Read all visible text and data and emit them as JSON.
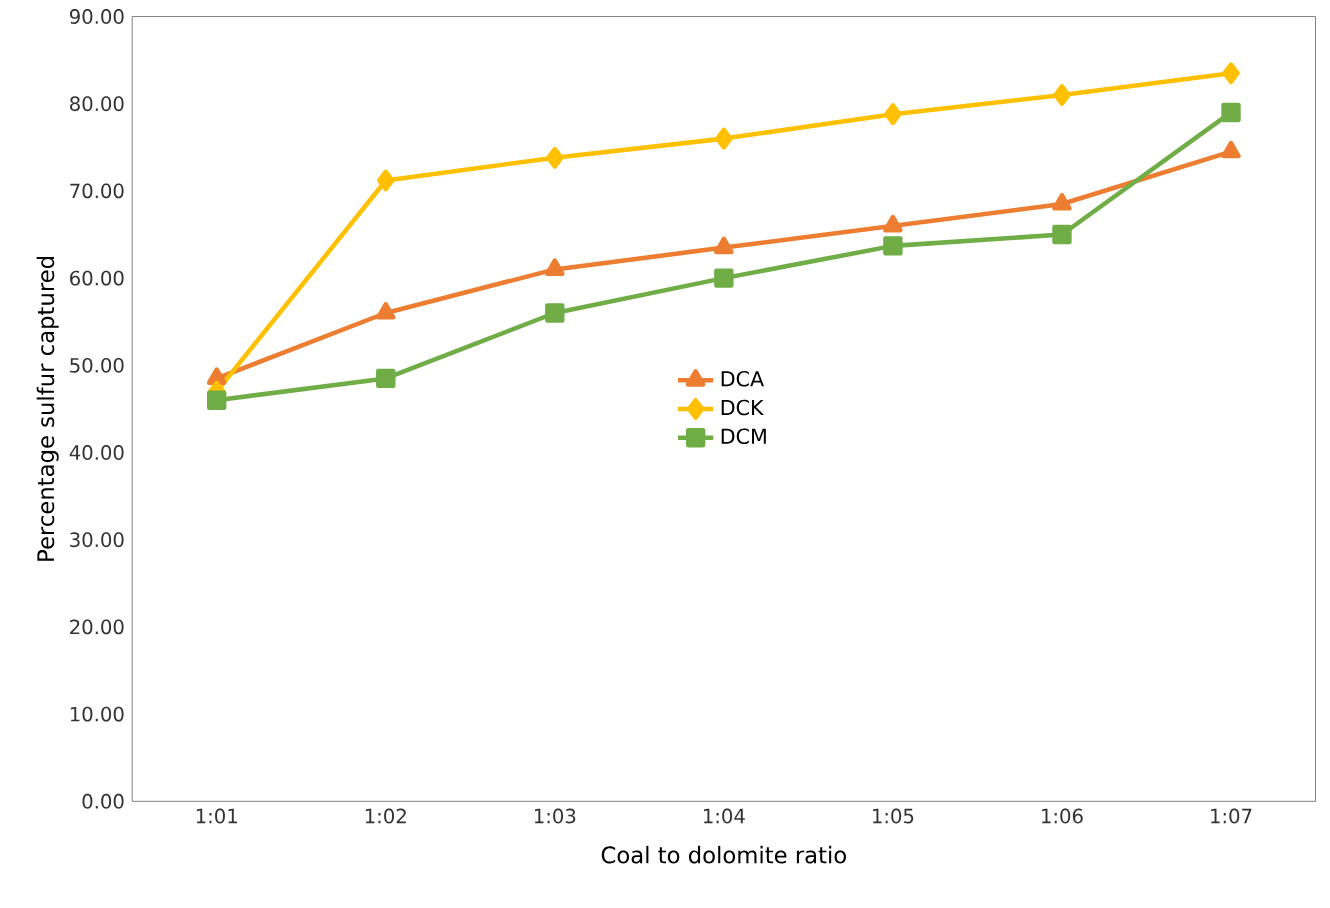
{
  "chart_data": {
    "type": "line",
    "xlabel": "Coal to dolomite ratio",
    "ylabel": "Percentage sulfur captured",
    "categories": [
      "1:01",
      "1:02",
      "1:03",
      "1:04",
      "1:05",
      "1:06",
      "1:07"
    ],
    "series": [
      {
        "name": "DCA",
        "color": "#ed7d31",
        "marker": "triangle",
        "values": [
          48.5,
          56,
          61,
          63.5,
          66,
          68.5,
          74.5
        ]
      },
      {
        "name": "DCK",
        "color": "#ffc000",
        "marker": "diamond",
        "values": [
          47,
          71.2,
          73.8,
          76,
          78.8,
          81,
          83.5
        ]
      },
      {
        "name": "DCM",
        "color": "#70ad47",
        "marker": "square",
        "values": [
          46,
          48.5,
          56,
          60,
          63.7,
          65,
          79
        ]
      }
    ],
    "ylim": [
      0,
      90
    ],
    "yticks": [
      {
        "value": 0,
        "label": "0.00"
      },
      {
        "value": 10,
        "label": "10.00"
      },
      {
        "value": 20,
        "label": "20.00"
      },
      {
        "value": 30,
        "label": "30.00"
      },
      {
        "value": 40,
        "label": "40.00"
      },
      {
        "value": 50,
        "label": "50.00"
      },
      {
        "value": 60,
        "label": "60.00"
      },
      {
        "value": 70,
        "label": "70.00"
      },
      {
        "value": 80,
        "label": "80.00"
      },
      {
        "value": 90,
        "label": "90.00"
      }
    ],
    "legend": "center",
    "grid": false
  }
}
